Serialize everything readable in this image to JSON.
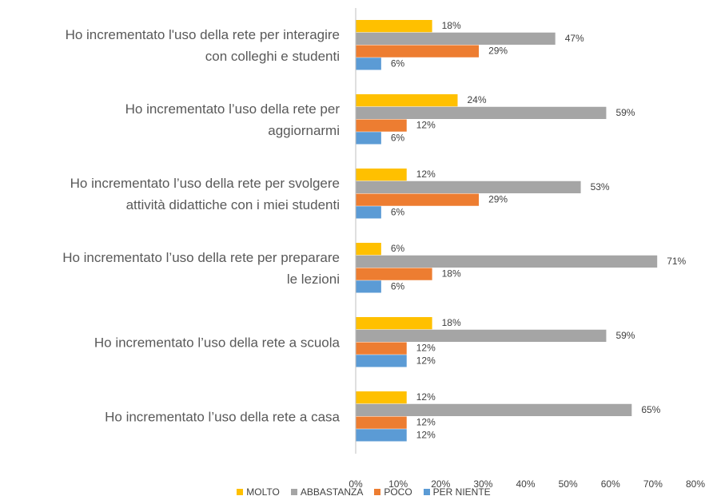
{
  "chart_data": {
    "type": "bar",
    "orientation": "horizontal",
    "categories": [
      "Ho incrementato l'uso della rete per interagire\ncon colleghi e studenti",
      "Ho incrementato l’uso della rete per\naggiornarmi",
      "Ho incrementato l’uso della rete per svolgere\nattività didattiche con i miei studenti",
      "Ho incrementato l’uso della rete per preparare\nle lezioni",
      "Ho incrementato l’uso della rete a scuola",
      "Ho incrementato l’uso della rete a casa"
    ],
    "series": [
      {
        "name": "MOLTO",
        "color": "#ffc000",
        "values": [
          18,
          24,
          12,
          6,
          18,
          12
        ],
        "value_labels": [
          "18%",
          "24%",
          "12%",
          "6%",
          "18%",
          "12%"
        ]
      },
      {
        "name": "ABBASTANZA",
        "color": "#a5a5a5",
        "values": [
          47,
          59,
          53,
          71,
          59,
          65
        ],
        "value_labels": [
          "47%",
          "59%",
          "53%",
          "71%",
          "59%",
          "65%"
        ]
      },
      {
        "name": "POCO",
        "color": "#ed7d31",
        "values": [
          29,
          12,
          29,
          18,
          12,
          12
        ],
        "value_labels": [
          "29%",
          "12%",
          "29%",
          "18%",
          "12%",
          "12%"
        ]
      },
      {
        "name": "PER NIENTE",
        "color": "#5b9bd5",
        "values": [
          6,
          6,
          6,
          6,
          12,
          12
        ],
        "value_labels": [
          "6%",
          "6%",
          "6%",
          "6%",
          "12%",
          "12%"
        ]
      }
    ],
    "xlim": [
      0,
      80
    ],
    "xticks": [
      {
        "value": 0,
        "label": "0%"
      },
      {
        "value": 10,
        "label": "10%"
      },
      {
        "value": 20,
        "label": "20%"
      },
      {
        "value": 30,
        "label": "30%"
      },
      {
        "value": 40,
        "label": "40%"
      },
      {
        "value": 50,
        "label": "50%"
      },
      {
        "value": 60,
        "label": "60%"
      },
      {
        "value": 70,
        "label": "70%"
      },
      {
        "value": 80,
        "label": "80%"
      }
    ],
    "grid": false,
    "legend": "bottom"
  }
}
